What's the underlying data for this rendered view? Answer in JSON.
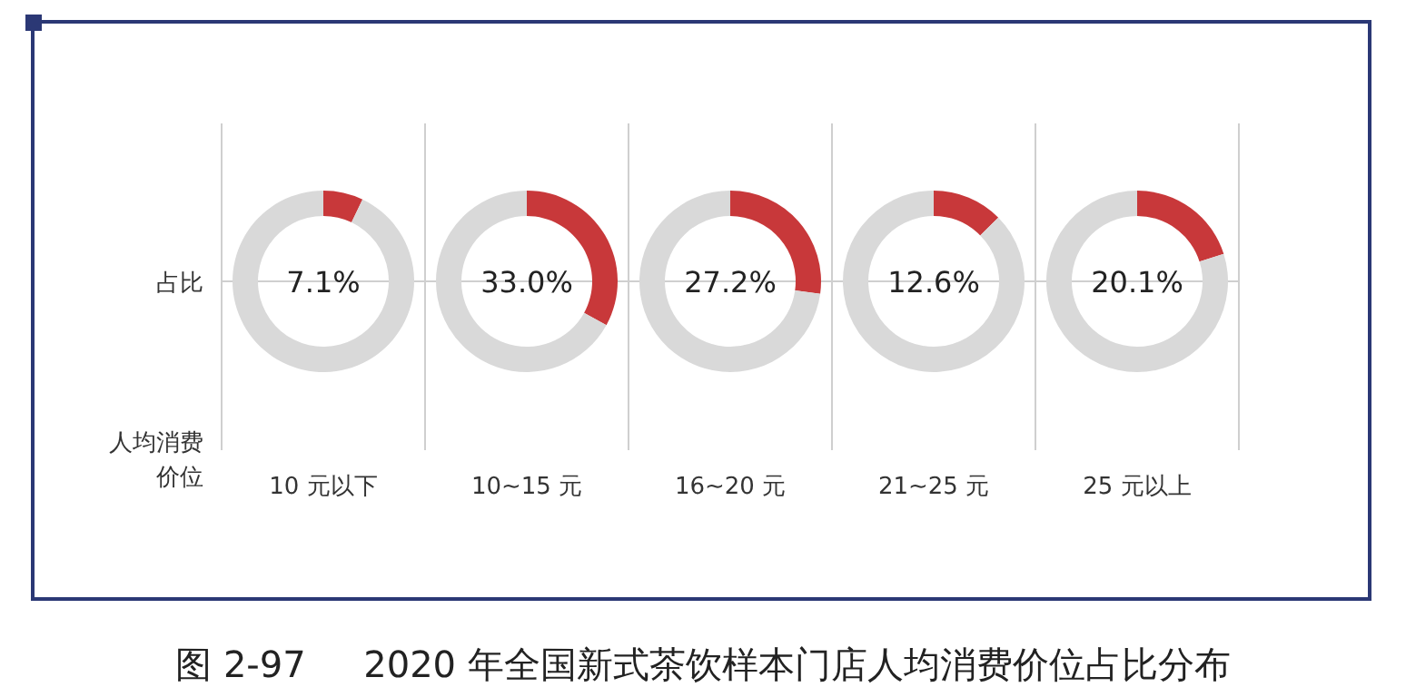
{
  "chart_data": [
    {
      "type": "other",
      "title": "图 2-97     2020 年全国新式茶饮样本门店人均消费价位占比分布",
      "annotations": [
        "占比",
        "人均消费",
        "价位"
      ]
    },
    {
      "type": "donut",
      "xlabel": "10 元以下",
      "categories": [
        null,
        null
      ],
      "values": [
        7.1,
        92.9
      ],
      "colors": [
        "#c8383a",
        "#d9d9d9"
      ],
      "annotations": [
        "7.1%"
      ]
    },
    {
      "type": "donut",
      "xlabel": "10~15 元",
      "categories": [
        null,
        null
      ],
      "values": [
        33.0,
        67.0
      ],
      "colors": [
        "#c8383a",
        "#d9d9d9"
      ],
      "annotations": [
        "33.0%"
      ]
    },
    {
      "type": "donut",
      "xlabel": "16~20 元",
      "categories": [
        null,
        null
      ],
      "values": [
        27.2,
        72.8
      ],
      "colors": [
        "#c8383a",
        "#d9d9d9"
      ],
      "annotations": [
        "27.2%"
      ]
    },
    {
      "type": "donut",
      "xlabel": "21~25 元",
      "categories": [
        null,
        null
      ],
      "values": [
        12.6,
        87.4
      ],
      "colors": [
        "#c8383a",
        "#d9d9d9"
      ],
      "annotations": [
        "12.6%"
      ]
    },
    {
      "type": "donut",
      "xlabel": "25 元以上",
      "categories": [
        null,
        null
      ],
      "values": [
        20.1,
        79.9
      ],
      "colors": [
        "#c8383a",
        "#d9d9d9"
      ],
      "annotations": [
        "20.1%"
      ]
    }
  ]
}
